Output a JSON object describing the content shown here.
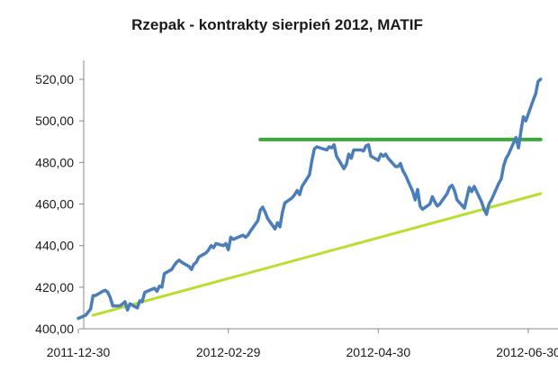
{
  "chart_data": {
    "type": "line",
    "title": "Rzepak - kontrakty sierpień 2012, MATIF",
    "xlabel": "",
    "ylabel": "",
    "ylim": [
      400,
      520
    ],
    "xlim": [
      "2011-12-30",
      "2012-07-05"
    ],
    "grid": false,
    "legend": "none",
    "y_ticks": [
      "400,00",
      "420,00",
      "440,00",
      "460,00",
      "480,00",
      "500,00",
      "520,00"
    ],
    "y_tick_values": [
      400,
      420,
      440,
      460,
      480,
      500,
      520
    ],
    "x_ticks": [
      "2011-12-30",
      "2012-02-29",
      "2012-04-30",
      "2012-06-30"
    ],
    "x_tick_values": [
      "2011-12-30",
      "2012-02-29",
      "2012-04-30",
      "2012-06-30"
    ],
    "series": [
      {
        "color": "#4a7ebb",
        "points": [
          [
            "2011-12-30",
            405
          ],
          [
            "2012-01-02",
            406.5
          ],
          [
            "2012-01-03",
            408
          ],
          [
            "2012-01-04",
            409.5
          ],
          [
            "2012-01-05",
            416
          ],
          [
            "2012-01-06",
            416
          ],
          [
            "2012-01-09",
            418
          ],
          [
            "2012-01-10",
            418.5
          ],
          [
            "2012-01-11",
            417.5
          ],
          [
            "2012-01-12",
            415
          ],
          [
            "2012-01-13",
            411
          ],
          [
            "2012-01-16",
            411
          ],
          [
            "2012-01-17",
            412
          ],
          [
            "2012-01-18",
            413
          ],
          [
            "2012-01-19",
            409
          ],
          [
            "2012-01-20",
            412
          ],
          [
            "2012-01-23",
            410
          ],
          [
            "2012-01-24",
            413.5
          ],
          [
            "2012-01-25",
            413
          ],
          [
            "2012-01-26",
            417.5
          ],
          [
            "2012-01-27",
            418
          ],
          [
            "2012-01-30",
            419.5
          ],
          [
            "2012-01-31",
            418
          ],
          [
            "2012-02-01",
            420.5
          ],
          [
            "2012-02-02",
            420
          ],
          [
            "2012-02-03",
            426.5
          ],
          [
            "2012-02-06",
            428.5
          ],
          [
            "2012-02-07",
            430.5
          ],
          [
            "2012-02-08",
            432
          ],
          [
            "2012-02-09",
            433
          ],
          [
            "2012-02-10",
            432
          ],
          [
            "2012-02-13",
            430
          ],
          [
            "2012-02-14",
            428.5
          ],
          [
            "2012-02-15",
            431
          ],
          [
            "2012-02-16",
            432
          ],
          [
            "2012-02-17",
            434.5
          ],
          [
            "2012-02-20",
            436.5
          ],
          [
            "2012-02-21",
            438
          ],
          [
            "2012-02-22",
            440
          ],
          [
            "2012-02-23",
            439
          ],
          [
            "2012-02-24",
            441
          ],
          [
            "2012-02-27",
            440
          ],
          [
            "2012-02-28",
            441
          ],
          [
            "2012-02-29",
            438
          ],
          [
            "2012-03-01",
            444
          ],
          [
            "2012-03-02",
            443
          ],
          [
            "2012-03-05",
            444.5
          ],
          [
            "2012-03-06",
            445
          ],
          [
            "2012-03-07",
            444
          ],
          [
            "2012-03-08",
            445
          ],
          [
            "2012-03-09",
            447
          ],
          [
            "2012-03-12",
            452
          ],
          [
            "2012-03-13",
            457
          ],
          [
            "2012-03-14",
            458.5
          ],
          [
            "2012-03-15",
            456
          ],
          [
            "2012-03-16",
            453
          ],
          [
            "2012-03-19",
            448
          ],
          [
            "2012-03-20",
            451
          ],
          [
            "2012-03-21",
            449
          ],
          [
            "2012-03-22",
            456
          ],
          [
            "2012-03-23",
            460.5
          ],
          [
            "2012-03-26",
            463
          ],
          [
            "2012-03-27",
            464.5
          ],
          [
            "2012-03-28",
            466.5
          ],
          [
            "2012-03-29",
            464.5
          ],
          [
            "2012-03-30",
            468.5
          ],
          [
            "2012-04-02",
            474
          ],
          [
            "2012-04-03",
            481
          ],
          [
            "2012-04-04",
            486.5
          ],
          [
            "2012-04-05",
            487.5
          ],
          [
            "2012-04-09",
            486
          ],
          [
            "2012-04-10",
            487.5
          ],
          [
            "2012-04-11",
            487
          ],
          [
            "2012-04-12",
            488.5
          ],
          [
            "2012-04-13",
            483
          ],
          [
            "2012-04-16",
            477
          ],
          [
            "2012-04-17",
            479
          ],
          [
            "2012-04-18",
            484
          ],
          [
            "2012-04-19",
            482
          ],
          [
            "2012-04-20",
            486
          ],
          [
            "2012-04-23",
            486
          ],
          [
            "2012-04-24",
            485.5
          ],
          [
            "2012-04-25",
            488
          ],
          [
            "2012-04-26",
            488.5
          ],
          [
            "2012-04-27",
            483
          ],
          [
            "2012-04-30",
            481
          ],
          [
            "2012-05-01",
            484
          ],
          [
            "2012-05-02",
            483
          ],
          [
            "2012-05-03",
            484
          ],
          [
            "2012-05-04",
            482
          ],
          [
            "2012-05-07",
            478
          ],
          [
            "2012-05-08",
            478
          ],
          [
            "2012-05-09",
            479.5
          ],
          [
            "2012-05-10",
            476
          ],
          [
            "2012-05-11",
            474
          ],
          [
            "2012-05-14",
            466
          ],
          [
            "2012-05-15",
            462
          ],
          [
            "2012-05-16",
            467
          ],
          [
            "2012-05-17",
            459
          ],
          [
            "2012-05-18",
            457.5
          ],
          [
            "2012-05-21",
            460
          ],
          [
            "2012-05-22",
            463.5
          ],
          [
            "2012-05-23",
            461
          ],
          [
            "2012-05-24",
            459
          ],
          [
            "2012-05-25",
            460
          ],
          [
            "2012-05-28",
            465
          ],
          [
            "2012-05-29",
            468
          ],
          [
            "2012-05-30",
            469
          ],
          [
            "2012-05-31",
            466.5
          ],
          [
            "2012-06-01",
            462
          ],
          [
            "2012-06-04",
            458
          ],
          [
            "2012-06-05",
            463
          ],
          [
            "2012-06-06",
            468
          ],
          [
            "2012-06-07",
            466
          ],
          [
            "2012-06-08",
            468.5
          ],
          [
            "2012-06-11",
            461
          ],
          [
            "2012-06-12",
            457.5
          ],
          [
            "2012-06-13",
            455
          ],
          [
            "2012-06-14",
            460
          ],
          [
            "2012-06-15",
            462
          ],
          [
            "2012-06-18",
            470
          ],
          [
            "2012-06-19",
            472
          ],
          [
            "2012-06-20",
            478.5
          ],
          [
            "2012-06-21",
            482
          ],
          [
            "2012-06-22",
            484
          ],
          [
            "2012-06-25",
            492
          ],
          [
            "2012-06-26",
            487
          ],
          [
            "2012-06-27",
            495
          ],
          [
            "2012-06-28",
            502
          ],
          [
            "2012-06-29",
            500
          ],
          [
            "2012-07-02",
            510
          ],
          [
            "2012-07-03",
            513
          ],
          [
            "2012-07-04",
            519
          ],
          [
            "2012-07-05",
            520
          ]
        ]
      },
      {
        "color": "#3aa83a",
        "points": [
          [
            "2012-03-13",
            491
          ],
          [
            "2012-07-05",
            491
          ]
        ]
      },
      {
        "color": "#b8de2e",
        "points": [
          [
            "2012-01-05",
            406.5
          ],
          [
            "2012-07-05",
            465
          ]
        ]
      }
    ]
  }
}
